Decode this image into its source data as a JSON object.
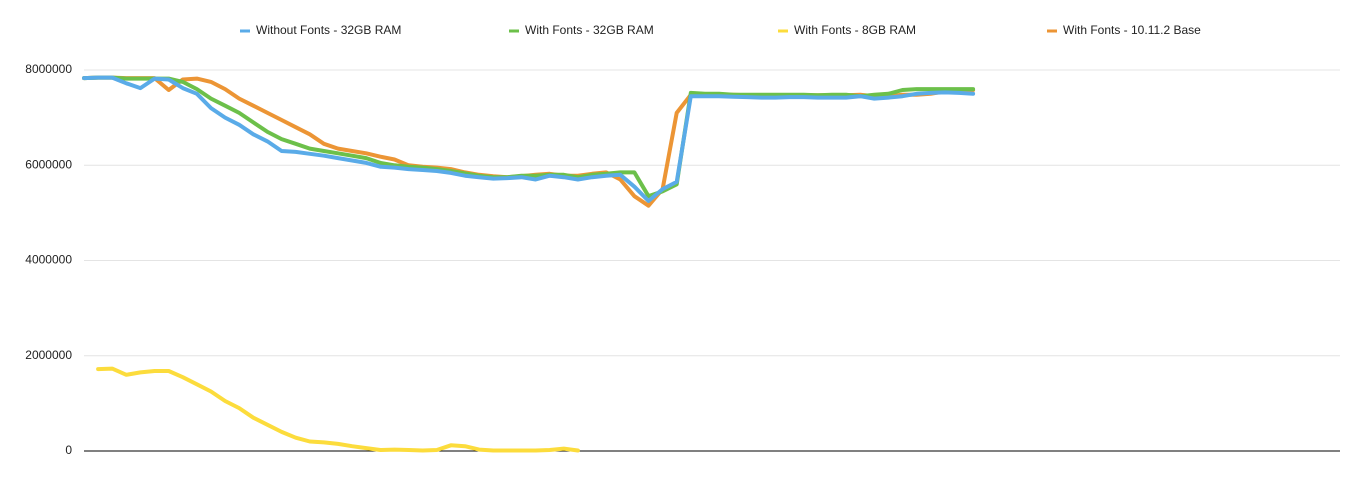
{
  "chart_data": {
    "type": "line",
    "categories": [
      null,
      null,
      null,
      null,
      null,
      null,
      null,
      null,
      null,
      null,
      null,
      null,
      null,
      null,
      null,
      null,
      null,
      null,
      null,
      null,
      null,
      null,
      null,
      null,
      null,
      null,
      null,
      null,
      null,
      null,
      null,
      null,
      null,
      null,
      null,
      null,
      null,
      null,
      null,
      null,
      null,
      null,
      null,
      null,
      null,
      null,
      null,
      null,
      null,
      null,
      null,
      null,
      null,
      null,
      null,
      null,
      null,
      null,
      null,
      null,
      null,
      null,
      null,
      null,
      null,
      null,
      null,
      null,
      null,
      null,
      null,
      null,
      null,
      null,
      null,
      null,
      null,
      null,
      null,
      null,
      null,
      null,
      null,
      null,
      null,
      null,
      null,
      null,
      null,
      null
    ],
    "series": [
      {
        "name": "Without Fonts - 32GB RAM",
        "color": "#5aabe8",
        "values": [
          7830000,
          7840000,
          7840000,
          7720000,
          7620000,
          7820000,
          7800000,
          7620000,
          7500000,
          7200000,
          7000000,
          6850000,
          6650000,
          6500000,
          6300000,
          6280000,
          6240000,
          6200000,
          6150000,
          6100000,
          6050000,
          5970000,
          5950000,
          5920000,
          5900000,
          5880000,
          5840000,
          5780000,
          5750000,
          5720000,
          5730000,
          5750000,
          5700000,
          5780000,
          5750000,
          5700000,
          5750000,
          5780000,
          5800000,
          5550000,
          5250000,
          5500000,
          5650000,
          7450000,
          7450000,
          7450000,
          7440000,
          7430000,
          7420000,
          7420000,
          7430000,
          7430000,
          7420000,
          7420000,
          7420000,
          7450000,
          7400000,
          7420000,
          7450000,
          7500000,
          7520000,
          7530000,
          7520000,
          7500000,
          null,
          null,
          null,
          null,
          null,
          null,
          null,
          null,
          null,
          null,
          null,
          null,
          null,
          null,
          null,
          null,
          null,
          null,
          null,
          null,
          null,
          null,
          null,
          null,
          null,
          null
        ]
      },
      {
        "name": "With Fonts - 32GB RAM",
        "color": "#6cc04a",
        "values": [
          7830000,
          7840000,
          7840000,
          7820000,
          7820000,
          7820000,
          7820000,
          7750000,
          7600000,
          7400000,
          7250000,
          7100000,
          6900000,
          6700000,
          6550000,
          6450000,
          6350000,
          6300000,
          6250000,
          6200000,
          6150000,
          6050000,
          6000000,
          5970000,
          5950000,
          5920000,
          5880000,
          5830000,
          5780000,
          5750000,
          5750000,
          5780000,
          5780000,
          5800000,
          5800000,
          5750000,
          5800000,
          5820000,
          5850000,
          5850000,
          5350000,
          5450000,
          5600000,
          7520000,
          7500000,
          7500000,
          7480000,
          7480000,
          7480000,
          7480000,
          7480000,
          7480000,
          7470000,
          7480000,
          7480000,
          7450000,
          7480000,
          7500000,
          7580000,
          7600000,
          7600000,
          7600000,
          7600000,
          7600000,
          null,
          null,
          null,
          null,
          null,
          null,
          null,
          null,
          null,
          null,
          null,
          null,
          null,
          null,
          null,
          null,
          null,
          null,
          null,
          null,
          null,
          null,
          null,
          null,
          null,
          null
        ]
      },
      {
        "name": "With Fonts - 8GB RAM",
        "color": "#fcdc3c",
        "values": [
          null,
          1720000,
          1730000,
          1600000,
          1650000,
          1680000,
          1680000,
          1550000,
          1400000,
          1250000,
          1050000,
          900000,
          700000,
          550000,
          400000,
          280000,
          200000,
          180000,
          150000,
          100000,
          60000,
          20000,
          30000,
          20000,
          10000,
          20000,
          120000,
          100000,
          30000,
          10000,
          10000,
          10000,
          10000,
          20000,
          50000,
          10000,
          null,
          null,
          null,
          null,
          null,
          null,
          null,
          null,
          null,
          null,
          null,
          null,
          null,
          null,
          null,
          null,
          null,
          null,
          null,
          null,
          null,
          null,
          null,
          null,
          null,
          null,
          null,
          null,
          null,
          null,
          null,
          null,
          null,
          null,
          null,
          null,
          null,
          null,
          null,
          null,
          null,
          null,
          null,
          null,
          null,
          null,
          null,
          null,
          null,
          null,
          null,
          null,
          null,
          null
        ]
      },
      {
        "name": "With Fonts - 10.11.2 Base",
        "color": "#ec9535",
        "values": [
          7830000,
          7840000,
          7840000,
          7830000,
          7830000,
          7830000,
          7580000,
          7800000,
          7820000,
          7750000,
          7600000,
          7400000,
          7250000,
          7100000,
          6950000,
          6800000,
          6650000,
          6450000,
          6350000,
          6300000,
          6250000,
          6180000,
          6120000,
          6000000,
          5970000,
          5950000,
          5920000,
          5850000,
          5800000,
          5770000,
          5750000,
          5770000,
          5800000,
          5820000,
          5780000,
          5780000,
          5820000,
          5850000,
          5700000,
          5350000,
          5150000,
          5500000,
          7100000,
          7480000,
          7480000,
          7480000,
          7480000,
          7470000,
          7470000,
          7470000,
          7470000,
          7470000,
          7470000,
          7470000,
          7470000,
          7480000,
          7450000,
          7450000,
          7480000,
          7480000,
          7500000,
          7550000,
          7580000,
          7580000,
          null,
          null,
          null,
          null,
          null,
          null,
          null,
          null,
          null,
          null,
          null,
          null,
          null,
          null,
          null,
          null,
          null,
          null,
          null,
          null,
          null,
          null,
          null,
          null,
          null,
          null
        ]
      }
    ],
    "draw_order": [
      2,
      3,
      1,
      0
    ],
    "ylim": [
      0,
      8000000
    ],
    "yticks": [
      0,
      2000000,
      4000000,
      6000000,
      8000000
    ],
    "grid": true,
    "legend": "top"
  }
}
